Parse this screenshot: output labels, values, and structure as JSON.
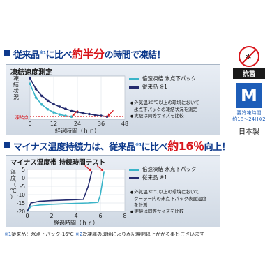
{
  "banner1": {
    "pre": "従来品",
    "mark": "※1",
    "mid": "に比べ",
    "hl": "約半分",
    "post": "の時間で凍結！"
  },
  "banner2": {
    "pre": "マイナス温度持続力は、従来品",
    "mark": "※1",
    "mid": "に比べ",
    "hl": "約16％",
    "post": "向上！"
  },
  "panel1": {
    "title": "凍結速度測定",
    "legend": [
      "倍速凍結 氷点下パック",
      "従来品 ※1"
    ],
    "notes": [
      "外気温30℃以上の環境において",
      "氷点下パックの凍結状況を測定",
      "実験は同等サイズを比較"
    ]
  },
  "panel2": {
    "title": "マイナス温度帯 持続時間テスト",
    "legend": [
      "倍速凍結 氷点下パック",
      "従来品 ※1"
    ],
    "notes": [
      "外気温30℃以上の環境において",
      "クーラー内の氷点下パック表面温度",
      "を計測",
      "実験は同等サイズを比較"
    ]
  },
  "side": {
    "kokin": "抗菌",
    "size": "M",
    "req1": "要冷凍時間",
    "req2": "約18〜24H※2",
    "made": "日本製"
  },
  "footer": {
    "m1": "※1",
    "t1": "従来品：氷点下パック-16℃",
    "m2": "※2",
    "t2": "冷凍庫の環境により表記時間以上かかる事もございます"
  },
  "colors": {
    "new_series": "#3ab4c8",
    "old_series": "#232a6e",
    "accent": "#d8141a",
    "banner": "#0e3a8c"
  },
  "chart_data": [
    {
      "type": "line",
      "title": "凍結速度測定",
      "xlabel": "経過時間（ｈｒ）",
      "ylabel": "凍結状況",
      "xlim": [
        0,
        48
      ],
      "ylim": [
        0,
        10
      ],
      "xticks": [
        0,
        12,
        24,
        36,
        48
      ],
      "annotation": "凍結点",
      "freeze_level": 0.6,
      "series": [
        {
          "name": "倍速凍結 氷点下パック",
          "x": [
            0,
            3,
            6,
            9,
            12,
            15,
            18,
            21
          ],
          "y": [
            8.2,
            5.0,
            3.4,
            2.3,
            1.6,
            1.1,
            0.8,
            0.6
          ]
        },
        {
          "name": "従来品 ※1",
          "x": [
            0,
            3,
            6,
            9,
            12,
            15,
            18,
            21,
            24,
            27,
            30,
            33,
            36,
            39
          ],
          "y": [
            9.5,
            7.0,
            5.4,
            4.3,
            3.5,
            2.9,
            2.4,
            2.0,
            1.7,
            1.4,
            1.2,
            1.0,
            0.8,
            0.6
          ]
        }
      ]
    },
    {
      "type": "line",
      "title": "マイナス温度帯 持続時間テスト",
      "xlabel": "経過時間（ｈｒ）",
      "ylabel": "温度（℃）",
      "xlim": [
        0,
        8
      ],
      "ylim": [
        -20,
        5
      ],
      "xticks": [
        0,
        2,
        4,
        6,
        8
      ],
      "yticks": [
        5,
        0,
        -5,
        -10,
        -15,
        -20
      ],
      "series": [
        {
          "name": "倍速凍結 氷点下パック",
          "x": [
            0,
            0.3,
            1,
            2,
            3,
            4,
            5,
            5.5,
            5.8,
            6.0,
            6.3
          ],
          "y": [
            -20,
            -17,
            -16.2,
            -15.8,
            -15.5,
            -15.2,
            -15,
            -14.8,
            -14.6,
            -10,
            4
          ]
        },
        {
          "name": "従来品 ※1",
          "x": [
            0,
            0.3,
            1,
            2,
            3,
            4,
            4.6,
            5.0,
            5.3
          ],
          "y": [
            -20,
            -15,
            -14,
            -13.6,
            -13.3,
            -13,
            -12.8,
            -5,
            4
          ]
        }
      ]
    }
  ]
}
